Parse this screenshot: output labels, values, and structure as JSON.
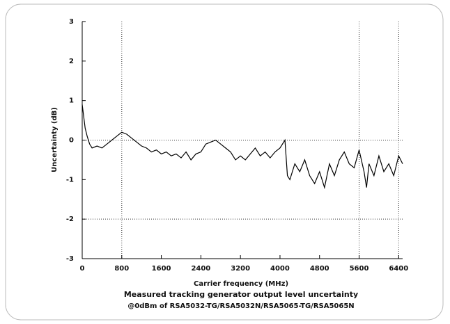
{
  "chart_data": {
    "type": "line",
    "title": "Measured tracking generator output level uncertainty",
    "subtitle": "@0dBm of RSA5032-TG/RSA5032N/RSA5065-TG/RSA5065N",
    "x_label": "Carrier frequency (MHz)",
    "y_label": "Uncertainty (dB)",
    "xlim": [
      0,
      6480
    ],
    "ylim": [
      -3,
      3
    ],
    "xticks": [
      0,
      800,
      1600,
      2400,
      3200,
      4000,
      4800,
      5600,
      6400
    ],
    "yticks": [
      -3,
      -2,
      -1,
      0,
      1,
      2,
      3
    ],
    "ref_x": [
      800,
      5600,
      6400
    ],
    "ref_y": [
      0,
      -2
    ],
    "color": "#000000",
    "x": [
      0,
      30,
      60,
      100,
      150,
      200,
      300,
      400,
      500,
      600,
      700,
      800,
      900,
      1000,
      1100,
      1200,
      1300,
      1400,
      1500,
      1600,
      1700,
      1800,
      1900,
      2000,
      2100,
      2200,
      2300,
      2400,
      2500,
      2600,
      2700,
      2800,
      2900,
      3000,
      3100,
      3200,
      3300,
      3400,
      3500,
      3600,
      3700,
      3800,
      3900,
      4000,
      4100,
      4150,
      4200,
      4300,
      4400,
      4500,
      4600,
      4700,
      4800,
      4900,
      5000,
      5100,
      5200,
      5300,
      5400,
      5500,
      5600,
      5700,
      5750,
      5800,
      5900,
      6000,
      6100,
      6200,
      6300,
      6400,
      6480
    ],
    "values": [
      0.9,
      0.6,
      0.3,
      0.1,
      -0.1,
      -0.2,
      -0.15,
      -0.2,
      -0.1,
      0.0,
      0.1,
      0.2,
      0.15,
      0.05,
      -0.05,
      -0.15,
      -0.2,
      -0.3,
      -0.25,
      -0.35,
      -0.3,
      -0.4,
      -0.35,
      -0.45,
      -0.3,
      -0.5,
      -0.35,
      -0.3,
      -0.1,
      -0.05,
      0.0,
      -0.1,
      -0.2,
      -0.3,
      -0.5,
      -0.4,
      -0.5,
      -0.35,
      -0.2,
      -0.4,
      -0.3,
      -0.45,
      -0.3,
      -0.2,
      0.0,
      -0.9,
      -1.0,
      -0.6,
      -0.8,
      -0.5,
      -0.9,
      -1.1,
      -0.8,
      -1.2,
      -0.6,
      -0.9,
      -0.5,
      -0.3,
      -0.6,
      -0.7,
      -0.25,
      -0.8,
      -1.2,
      -0.6,
      -0.9,
      -0.4,
      -0.8,
      -0.6,
      -0.9,
      -0.4,
      -0.6
    ]
  }
}
